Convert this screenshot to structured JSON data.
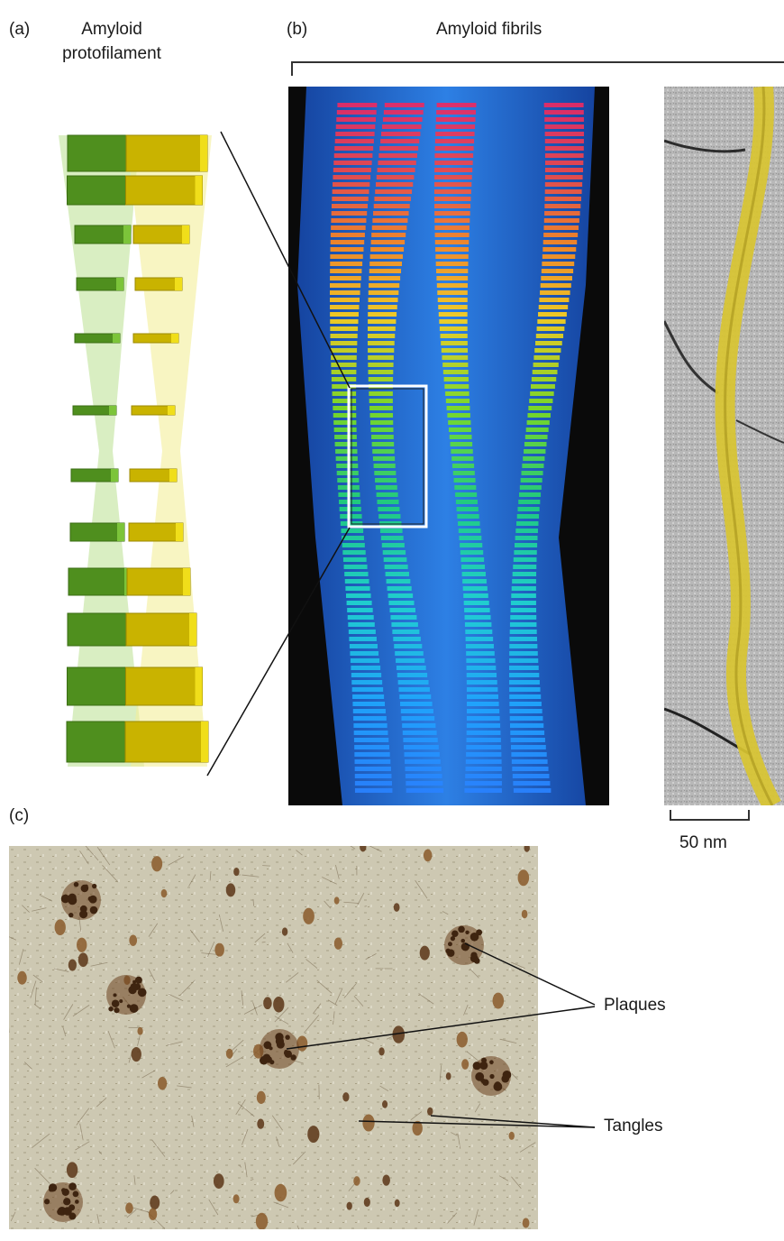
{
  "panel_a": {
    "letter": "(a)",
    "title_line1": "Amyloid",
    "title_line2": "protofilament"
  },
  "panel_b": {
    "letter": "(b)",
    "title": "Amyloid fibrils",
    "scale_bar": "50 nm"
  },
  "panel_c": {
    "letter": "(c)",
    "callout_plaques": "Plaques",
    "callout_tangles": "Tangles"
  },
  "colors": {
    "protofilament_green": "#4f8f1e",
    "protofilament_yellow": "#d9c100",
    "fibril_background": "#0a0a0a",
    "fibril_envelope": "#1e6fd8",
    "em_fibril_yellow": "#d8c431",
    "tissue_background": "#cfcab5"
  }
}
